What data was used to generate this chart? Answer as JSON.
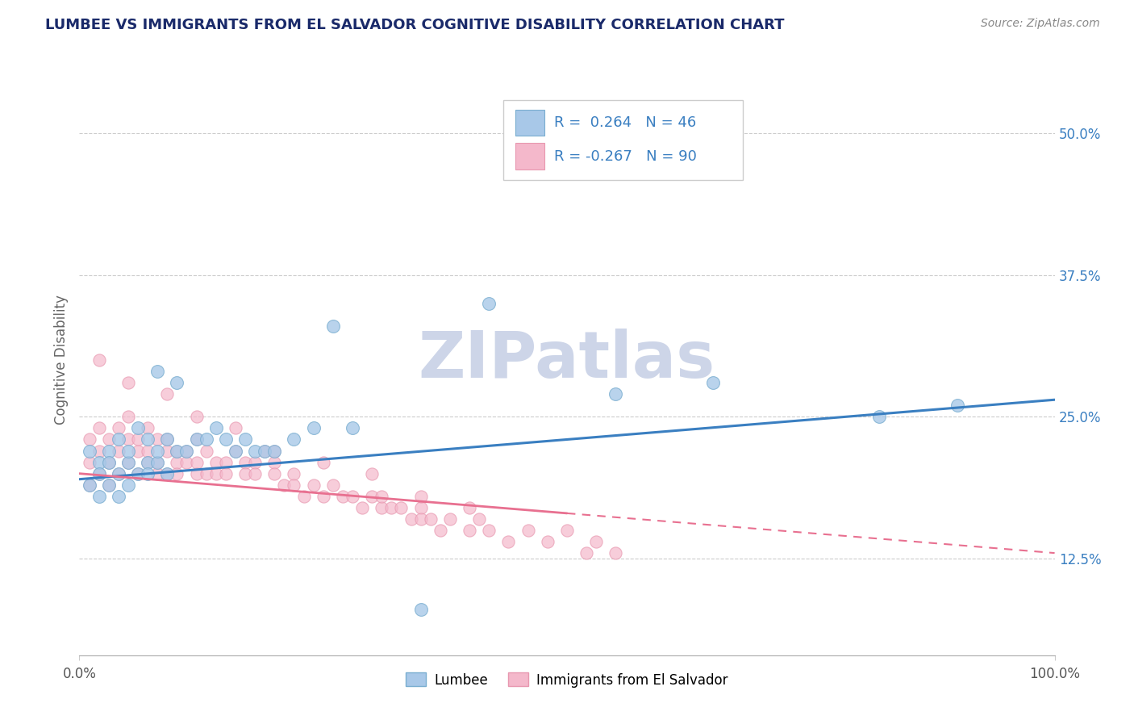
{
  "title": "LUMBEE VS IMMIGRANTS FROM EL SALVADOR COGNITIVE DISABILITY CORRELATION CHART",
  "source_text": "Source: ZipAtlas.com",
  "ylabel": "Cognitive Disability",
  "watermark": "ZIPatlas",
  "legend_r1": "R =  0.264",
  "legend_n1": "N = 46",
  "legend_r2": "R = -0.267",
  "legend_n2": "N = 90",
  "xlim": [
    0.0,
    1.0
  ],
  "ylim": [
    0.04,
    0.56
  ],
  "yticks": [
    0.125,
    0.25,
    0.375,
    0.5
  ],
  "ytick_labels": [
    "12.5%",
    "25.0%",
    "37.5%",
    "50.0%"
  ],
  "xticks": [
    0.0,
    1.0
  ],
  "xtick_labels": [
    "0.0%",
    "100.0%"
  ],
  "blue_scatter_color": "#a8c8e8",
  "blue_scatter_edge": "#7aaed0",
  "pink_scatter_color": "#f4b8cb",
  "pink_scatter_edge": "#e898b0",
  "blue_line_color": "#3a7fc1",
  "pink_line_color": "#e87090",
  "title_color": "#1a2a6a",
  "axis_label_color": "#666666",
  "tick_color": "#555555",
  "grid_color": "#cccccc",
  "watermark_color": "#cdd5e8",
  "background_color": "#ffffff",
  "blue_line_y0": 0.195,
  "blue_line_y1": 0.265,
  "pink_line_y0": 0.2,
  "pink_line_y1": 0.13,
  "lumbee_x": [
    0.01,
    0.01,
    0.02,
    0.02,
    0.02,
    0.03,
    0.03,
    0.03,
    0.04,
    0.04,
    0.04,
    0.05,
    0.05,
    0.05,
    0.06,
    0.06,
    0.07,
    0.07,
    0.07,
    0.08,
    0.08,
    0.08,
    0.09,
    0.09,
    0.1,
    0.1,
    0.11,
    0.12,
    0.13,
    0.14,
    0.15,
    0.16,
    0.17,
    0.18,
    0.19,
    0.2,
    0.22,
    0.24,
    0.26,
    0.28,
    0.35,
    0.42,
    0.55,
    0.65,
    0.82,
    0.9
  ],
  "lumbee_y": [
    0.22,
    0.19,
    0.21,
    0.18,
    0.2,
    0.22,
    0.19,
    0.21,
    0.2,
    0.23,
    0.18,
    0.21,
    0.19,
    0.22,
    0.2,
    0.24,
    0.21,
    0.2,
    0.23,
    0.21,
    0.29,
    0.22,
    0.23,
    0.2,
    0.28,
    0.22,
    0.22,
    0.23,
    0.23,
    0.24,
    0.23,
    0.22,
    0.23,
    0.22,
    0.22,
    0.22,
    0.23,
    0.24,
    0.33,
    0.24,
    0.08,
    0.35,
    0.27,
    0.28,
    0.25,
    0.26
  ],
  "salvador_x": [
    0.01,
    0.01,
    0.01,
    0.02,
    0.02,
    0.02,
    0.03,
    0.03,
    0.03,
    0.04,
    0.04,
    0.04,
    0.05,
    0.05,
    0.05,
    0.06,
    0.06,
    0.06,
    0.07,
    0.07,
    0.07,
    0.08,
    0.08,
    0.08,
    0.09,
    0.09,
    0.09,
    0.1,
    0.1,
    0.1,
    0.11,
    0.11,
    0.12,
    0.12,
    0.12,
    0.13,
    0.13,
    0.14,
    0.14,
    0.15,
    0.15,
    0.16,
    0.17,
    0.17,
    0.18,
    0.18,
    0.19,
    0.2,
    0.2,
    0.21,
    0.22,
    0.22,
    0.23,
    0.24,
    0.25,
    0.26,
    0.27,
    0.28,
    0.29,
    0.3,
    0.31,
    0.31,
    0.32,
    0.33,
    0.34,
    0.35,
    0.35,
    0.36,
    0.37,
    0.38,
    0.4,
    0.41,
    0.42,
    0.44,
    0.46,
    0.48,
    0.5,
    0.52,
    0.53,
    0.55,
    0.02,
    0.05,
    0.09,
    0.12,
    0.16,
    0.2,
    0.25,
    0.3,
    0.35,
    0.4
  ],
  "salvador_y": [
    0.23,
    0.21,
    0.19,
    0.22,
    0.2,
    0.24,
    0.21,
    0.23,
    0.19,
    0.22,
    0.2,
    0.24,
    0.21,
    0.23,
    0.25,
    0.22,
    0.2,
    0.23,
    0.22,
    0.21,
    0.24,
    0.21,
    0.23,
    0.2,
    0.22,
    0.2,
    0.23,
    0.21,
    0.22,
    0.2,
    0.22,
    0.21,
    0.23,
    0.21,
    0.2,
    0.22,
    0.2,
    0.21,
    0.2,
    0.21,
    0.2,
    0.22,
    0.21,
    0.2,
    0.21,
    0.2,
    0.22,
    0.21,
    0.2,
    0.19,
    0.2,
    0.19,
    0.18,
    0.19,
    0.18,
    0.19,
    0.18,
    0.18,
    0.17,
    0.18,
    0.17,
    0.18,
    0.17,
    0.17,
    0.16,
    0.17,
    0.16,
    0.16,
    0.15,
    0.16,
    0.15,
    0.16,
    0.15,
    0.14,
    0.15,
    0.14,
    0.15,
    0.13,
    0.14,
    0.13,
    0.3,
    0.28,
    0.27,
    0.25,
    0.24,
    0.22,
    0.21,
    0.2,
    0.18,
    0.17
  ]
}
